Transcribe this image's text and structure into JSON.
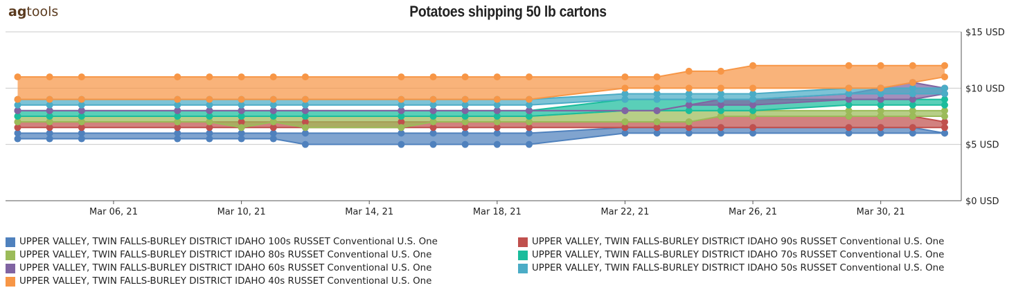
{
  "brand": {
    "prefix": "ag",
    "suffix": "tools"
  },
  "chart_data": {
    "type": "area",
    "title": "Potatoes shipping  50 lb cartons",
    "xlabel": "",
    "ylabel": "",
    "ylim": [
      0,
      15
    ],
    "y_ticks": [
      "$0 USD",
      "$5 USD",
      "$10 USD",
      "$15 USD"
    ],
    "y_tick_values": [
      0,
      5,
      10,
      15
    ],
    "x_ticks": [
      "Mar 06, 21",
      "Mar 10, 21",
      "Mar 14, 21",
      "Mar 18, 21",
      "Mar 22, 21",
      "Mar 26, 21",
      "Mar 30, 21"
    ],
    "x_tick_dates": [
      "2021-03-06",
      "2021-03-10",
      "2021-03-14",
      "2021-03-18",
      "2021-03-22",
      "2021-03-26",
      "2021-03-30"
    ],
    "x_range": [
      "2021-03-03",
      "2021-04-01"
    ],
    "y_axis_position": "right",
    "grid": true,
    "legend_position": "bottom",
    "x": [
      "2021-03-03",
      "2021-03-04",
      "2021-03-05",
      "2021-03-08",
      "2021-03-09",
      "2021-03-10",
      "2021-03-11",
      "2021-03-12",
      "2021-03-15",
      "2021-03-16",
      "2021-03-17",
      "2021-03-18",
      "2021-03-19",
      "2021-03-22",
      "2021-03-23",
      "2021-03-24",
      "2021-03-25",
      "2021-03-26",
      "2021-03-29",
      "2021-03-30",
      "2021-03-31",
      "2021-04-01"
    ],
    "series": [
      {
        "name": "UPPER VALLEY, TWIN FALLS-BURLEY DISTRICT IDAHO 100s  RUSSET Conventional U.S. One",
        "color": "#4f81bd",
        "low": [
          5.5,
          5.5,
          5.5,
          5.5,
          5.5,
          5.5,
          5.5,
          5,
          5,
          5,
          5,
          5,
          5,
          6,
          6,
          6,
          6,
          6,
          6,
          6,
          6,
          6
        ],
        "high": [
          6,
          6,
          6,
          6,
          6,
          6,
          6,
          6,
          6,
          6,
          6,
          6,
          6,
          6.5,
          6.5,
          6.5,
          6.5,
          6.5,
          6.5,
          6.5,
          6.5,
          6
        ]
      },
      {
        "name": "UPPER VALLEY, TWIN FALLS-BURLEY DISTRICT IDAHO 90s  RUSSET Conventional U.S. One",
        "color": "#c0504d",
        "low": [
          6.5,
          6.5,
          6.5,
          6.5,
          6.5,
          6.5,
          6.5,
          6.5,
          6.5,
          6.5,
          6.5,
          6.5,
          6.5,
          6.5,
          6.5,
          6.5,
          6.5,
          6.5,
          6.5,
          6.5,
          6.5,
          6.5
        ],
        "high": [
          7,
          7,
          7,
          7,
          7,
          7,
          7,
          7,
          7,
          7,
          7,
          7,
          7,
          7,
          7,
          7,
          7.5,
          7.5,
          7.5,
          7.5,
          7.5,
          7
        ]
      },
      {
        "name": "UPPER VALLEY, TWIN FALLS-BURLEY DISTRICT IDAHO 80s  RUSSET Conventional U.S. One",
        "color": "#9bbb59",
        "low": [
          7,
          7,
          7,
          7,
          7,
          6.5,
          7,
          6.5,
          6.5,
          7,
          7,
          7,
          7,
          7,
          7,
          7,
          7.5,
          7.5,
          7.5,
          7.5,
          7.5,
          7.5
        ],
        "high": [
          7.5,
          7.5,
          7.5,
          7.5,
          7.5,
          7.5,
          7.5,
          7.5,
          7.5,
          7.5,
          7.5,
          7.5,
          7.5,
          8,
          8,
          8,
          8,
          8,
          8,
          8,
          8,
          8
        ]
      },
      {
        "name": "UPPER VALLEY, TWIN FALLS-BURLEY DISTRICT IDAHO 70s  RUSSET Conventional U.S. One",
        "color": "#1abc9c",
        "low": [
          7.5,
          7.5,
          7.5,
          7.5,
          7.5,
          7.5,
          7.5,
          7.5,
          7.5,
          7.5,
          7.5,
          7.5,
          7.5,
          8,
          8,
          8,
          8,
          8,
          8.5,
          8.5,
          8.5,
          8.5
        ],
        "high": [
          8,
          8,
          8,
          8,
          8,
          8,
          8,
          8,
          8,
          8,
          8,
          8,
          8,
          9,
          9,
          9,
          9,
          9,
          9,
          9,
          9,
          9
        ]
      },
      {
        "name": "UPPER VALLEY, TWIN FALLS-BURLEY DISTRICT IDAHO 60s  RUSSET Conventional U.S. One",
        "color": "#8064a2",
        "low": [
          8,
          8,
          8,
          8,
          8,
          8,
          8,
          8,
          8,
          8,
          8,
          8,
          8,
          8,
          8,
          8.5,
          8.5,
          8.5,
          9,
          9,
          9,
          9.5
        ],
        "high": [
          8,
          8,
          8,
          8,
          8,
          8,
          8,
          8,
          8,
          8,
          8,
          8,
          8,
          8,
          8,
          8.5,
          9,
          9,
          9.5,
          10,
          10.5,
          10
        ]
      },
      {
        "name": "UPPER VALLEY, TWIN FALLS-BURLEY DISTRICT IDAHO 50s  RUSSET Conventional U.S. One",
        "color": "#4bacc6",
        "low": [
          8.5,
          8.5,
          8.5,
          8.5,
          8.5,
          8.5,
          8.5,
          8.5,
          8.5,
          8.5,
          8.5,
          8.5,
          8.5,
          9,
          9,
          9,
          9,
          9,
          9.5,
          9.5,
          9.5,
          9.5
        ],
        "high": [
          9,
          9,
          9,
          9,
          9,
          9,
          9,
          9,
          9,
          9,
          9,
          9,
          9,
          9.5,
          9.5,
          9.5,
          9.5,
          9.5,
          10,
          10,
          10,
          10
        ]
      },
      {
        "name": "UPPER VALLEY, TWIN FALLS-BURLEY DISTRICT IDAHO 40s  RUSSET Conventional U.S. One",
        "color": "#f79646",
        "low": [
          9,
          9,
          9,
          9,
          9,
          9,
          9,
          9,
          9,
          9,
          9,
          9,
          9,
          10,
          10,
          10,
          10,
          10,
          10,
          10,
          10.5,
          11
        ],
        "high": [
          11,
          11,
          11,
          11,
          11,
          11,
          11,
          11,
          11,
          11,
          11,
          11,
          11,
          11,
          11,
          11.5,
          11.5,
          12,
          12,
          12,
          12,
          12
        ]
      }
    ]
  }
}
